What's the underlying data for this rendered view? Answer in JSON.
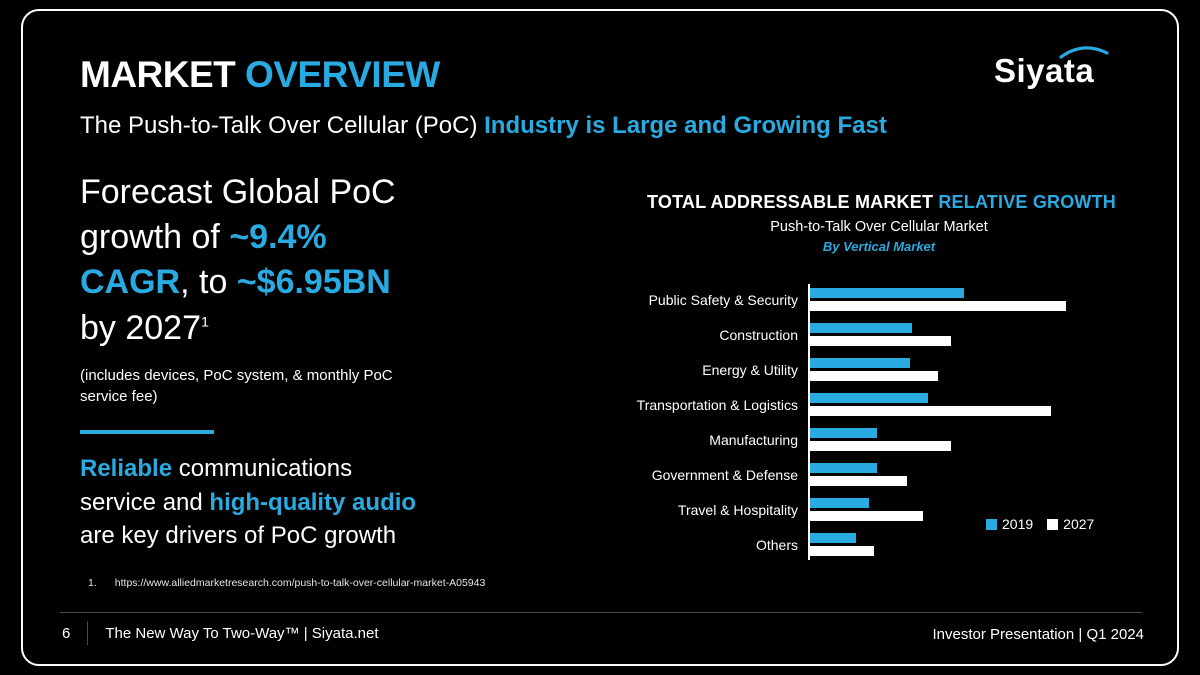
{
  "accent_color": "#29ABE2",
  "header": {
    "title_segments": [
      {
        "t": "MARKET ",
        "style": "white"
      },
      {
        "t": "OVERVIEW",
        "style": "blue"
      }
    ],
    "logo_text": "Siyata",
    "subtitle_segments": [
      {
        "t": "The Push-to-Talk Over Cellular (PoC) ",
        "style": "white"
      },
      {
        "t": "Industry is Large and Growing Fast",
        "style": "blue"
      }
    ]
  },
  "left": {
    "headline_segments": [
      {
        "t": "Forecast Global PoC",
        "style": "white",
        "br": true
      },
      {
        "t": "growth of ",
        "style": "white"
      },
      {
        "t": "~9.4%",
        "style": "blue",
        "br": true
      },
      {
        "t": "CAGR",
        "style": "blue"
      },
      {
        "t": ", to ",
        "style": "white"
      },
      {
        "t": "~$6.95BN",
        "style": "blue",
        "br": true
      },
      {
        "t": "by 2027",
        "style": "white"
      },
      {
        "t": "1",
        "style": "sup"
      }
    ],
    "note": "(includes devices, PoC system, & monthly PoC service fee)",
    "drivers_segments": [
      {
        "t": "Reliable",
        "style": "blue"
      },
      {
        "t": " communications",
        "style": "white",
        "br": true
      },
      {
        "t": "service and ",
        "style": "white"
      },
      {
        "t": "high-quality audio",
        "style": "blue",
        "br": true
      },
      {
        "t": "are key drivers of PoC growth",
        "style": "white"
      }
    ],
    "footnote": {
      "number": "1.",
      "url": "https://www.alliedmarketresearch.com/push-to-talk-over-cellular-market-A05943"
    }
  },
  "chart": {
    "title_segments": [
      {
        "t": "TOTAL ADDRESSABLE MARKET ",
        "style": "white"
      },
      {
        "t": "RELATIVE GROWTH",
        "style": "blue"
      }
    ],
    "subtitle": "Push-to-Talk Over Cellular Market",
    "tagline": "By Vertical Market"
  },
  "chart_data": {
    "type": "bar",
    "orientation": "horizontal",
    "title": "Total Addressable Market Relative Growth",
    "subtitle": "Push-to-Talk Over Cellular Market",
    "annotation": "By Vertical Market",
    "categories": [
      "Public Safety & Security",
      "Construction",
      "Energy & Utility",
      "Transportation & Logistics",
      "Manufacturing",
      "Government & Defense",
      "Travel & Hospitality",
      "Others"
    ],
    "series": [
      {
        "name": "2019",
        "color": "#29ABE2",
        "values": [
          60,
          40,
          39,
          46,
          26,
          26,
          23,
          18
        ]
      },
      {
        "name": "2027",
        "color": "#FFFFFF",
        "values": [
          100,
          55,
          50,
          94,
          55,
          38,
          44,
          25
        ]
      }
    ],
    "value_axis_range": [
      0,
      100
    ],
    "value_axis_note": "relative scale, no numeric axis labels shown",
    "grid": false,
    "legend_position": "bottom-right"
  },
  "footer": {
    "page_number": "6",
    "left_text": "The New Way To Two-Way™  |  Siyata.net",
    "right_text": "Investor Presentation  |  Q1 2024"
  }
}
